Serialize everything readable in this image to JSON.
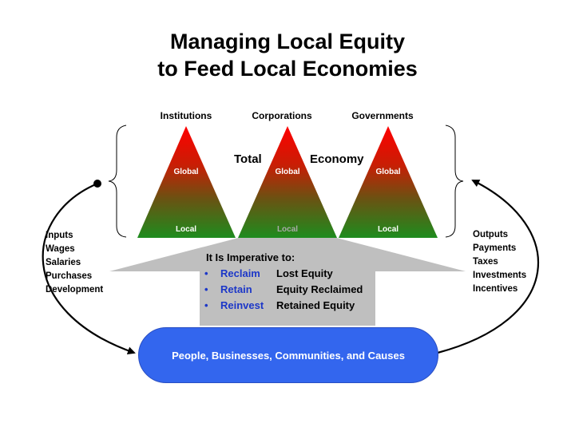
{
  "title": {
    "line1": "Managing Local Equity",
    "line2": "to Feed Local Economies"
  },
  "triangles": [
    {
      "top_label": "Institutions",
      "global_label": "Global",
      "local_label": "Local"
    },
    {
      "top_label": "Corporations",
      "global_label": "Global",
      "local_label": "Local"
    },
    {
      "top_label": "Governments",
      "global_label": "Global",
      "local_label": "Local"
    }
  ],
  "total_label": "Total",
  "economy_label": "Economy",
  "left_list": [
    "Inputs",
    "Wages",
    "Salaries",
    "Purchases",
    "Development"
  ],
  "right_list": [
    "Outputs",
    "Payments",
    "Taxes",
    "Investments",
    "Incentives"
  ],
  "imperative": {
    "heading": "It Is Imperative to:",
    "items": [
      {
        "bullet": "•",
        "verb": "Reclaim",
        "object": "Lost Equity"
      },
      {
        "bullet": "•",
        "verb": "Retain",
        "object": "Equity Reclaimed"
      },
      {
        "bullet": "•",
        "verb": "Reinvest",
        "object": "Retained Equity"
      }
    ]
  },
  "pill_label": "People, Businesses, Communities, and Causes",
  "colors": {
    "triangle_top": "#ff0000",
    "triangle_bottom": "#1e8c1e",
    "arrow_fill": "#bfbfbf",
    "pill": "#3366ee",
    "bullet_text": "#1c37c8"
  }
}
